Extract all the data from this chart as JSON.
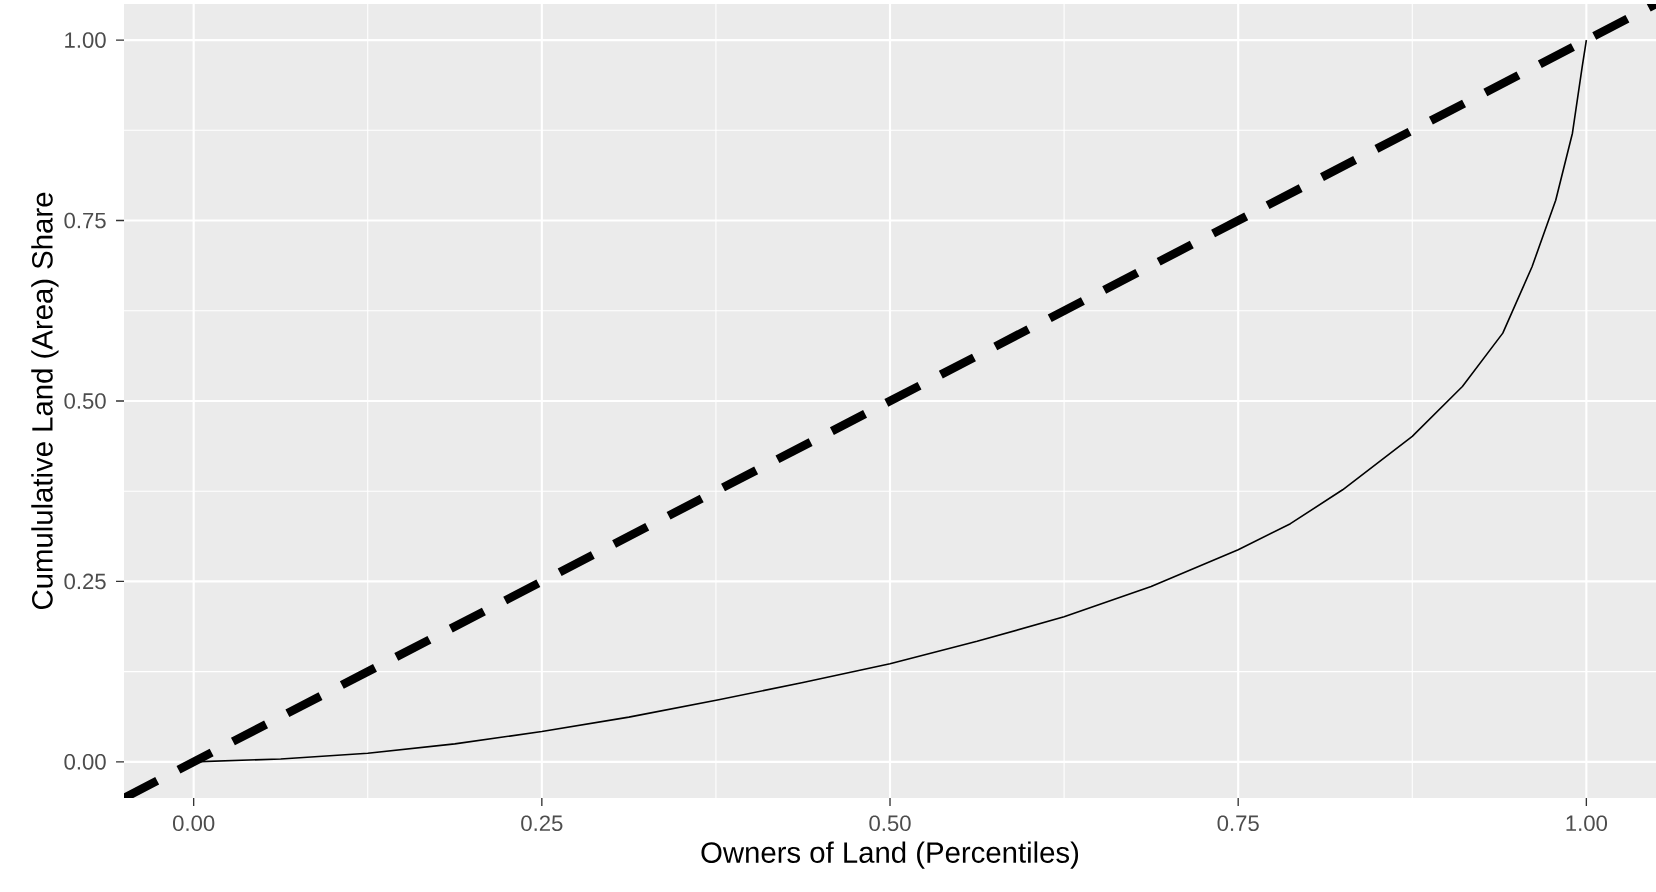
{
  "chart_data": {
    "type": "line",
    "xlabel": "Owners of Land (Percentiles)",
    "ylabel": "Cumululative Land (Area) Share",
    "series": [
      {
        "color": "#000000",
        "line_style": "solid",
        "x": [
          0,
          0.0625,
          0.125,
          0.1875,
          0.25,
          0.3125,
          0.377,
          0.4375,
          0.5,
          0.5625,
          0.625,
          0.6875,
          0.75,
          0.7875,
          0.825,
          0.875,
          0.911,
          0.94,
          0.961,
          0.978,
          0.99,
          0.997,
          1
        ],
        "values": [
          0,
          0.004,
          0.012,
          0.025,
          0.042,
          0.062,
          0.086,
          0.11,
          0.136,
          0.167,
          0.201,
          0.243,
          0.294,
          0.33,
          0.377,
          0.451,
          0.52,
          0.594,
          0.686,
          0.778,
          0.871,
          0.963,
          1
        ]
      },
      {
        "color": "#000000",
        "line_style": "dashed",
        "x": [
          -0.05,
          1.05
        ],
        "values": [
          -0.05,
          1.05
        ]
      }
    ],
    "xlim": [
      -0.05,
      1.05
    ],
    "ylim": [
      -0.05,
      1.05
    ],
    "xticks": [
      {
        "value": 0,
        "label": "0.00"
      },
      {
        "value": 0.25,
        "label": "0.25"
      },
      {
        "value": 0.5,
        "label": "0.50"
      },
      {
        "value": 0.75,
        "label": "0.75"
      },
      {
        "value": 1,
        "label": "1.00"
      }
    ],
    "yticks": [
      {
        "value": 0,
        "label": "0.00"
      },
      {
        "value": 0.25,
        "label": "0.25"
      },
      {
        "value": 0.5,
        "label": "0.50"
      },
      {
        "value": 0.75,
        "label": "0.75"
      },
      {
        "value": 1,
        "label": "1.00"
      }
    ],
    "grid": true,
    "marker": "none"
  }
}
